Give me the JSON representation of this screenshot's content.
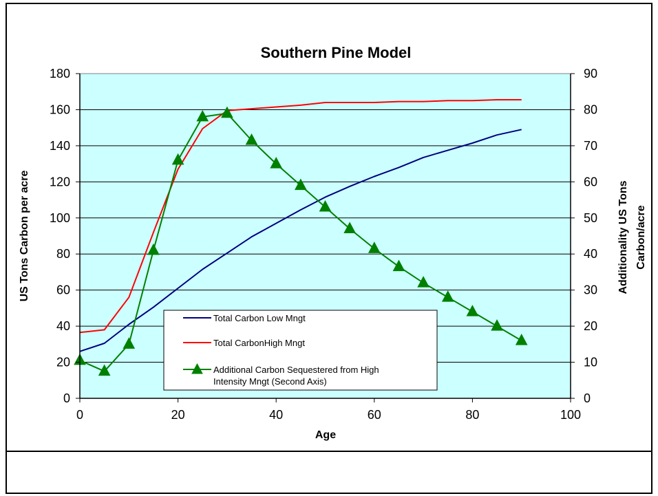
{
  "chart_data": {
    "type": "line",
    "title": "Southern Pine Model",
    "xlabel": "Age",
    "ylabel": "US Tons Carbon per acre",
    "ylabel_right": [
      "Additionality US Tons",
      "Carbon/acre"
    ],
    "xlim": [
      0,
      100
    ],
    "ylim": [
      0,
      180
    ],
    "ylim_right": [
      0,
      90
    ],
    "x_ticks": [
      0,
      20,
      40,
      60,
      80,
      100
    ],
    "y_ticks": [
      0,
      20,
      40,
      60,
      80,
      100,
      120,
      140,
      160,
      180
    ],
    "y_ticks_right": [
      0,
      10,
      20,
      30,
      40,
      50,
      60,
      70,
      80,
      90
    ],
    "grid": "horizontal",
    "legend_position": "lower-center",
    "plot_background": "#ccffff",
    "series": [
      {
        "name": "Total Carbon Low Mngt",
        "color": "#000080",
        "axis": "left",
        "marker": "none",
        "x": [
          0,
          5,
          10,
          15,
          20,
          25,
          30,
          35,
          40,
          45,
          50,
          55,
          60,
          65,
          70,
          75,
          80,
          85,
          90
        ],
        "values": [
          26,
          30.5,
          41,
          50.5,
          61,
          71.5,
          80.5,
          89.5,
          97,
          104.5,
          111.5,
          117.5,
          123,
          128,
          133.5,
          137.5,
          141.5,
          146,
          149
        ]
      },
      {
        "name": "Total CarbonHigh Mngt",
        "color": "#ff0000",
        "axis": "left",
        "marker": "none",
        "x": [
          0,
          5,
          10,
          15,
          20,
          25,
          30,
          35,
          40,
          45,
          50,
          55,
          60,
          65,
          70,
          75,
          80,
          85,
          90
        ],
        "values": [
          36.5,
          38,
          56,
          92,
          127,
          149.5,
          159.5,
          160.5,
          161.5,
          162.5,
          164,
          164,
          164,
          164.5,
          164.5,
          165,
          165,
          165.5,
          165.5
        ]
      },
      {
        "name": "Additional Carbon Sequestered from High Intensity Mngt (Second Axis)",
        "legend_lines": [
          "Additional Carbon Sequestered from High",
          "Intensity Mngt (Second Axis)"
        ],
        "color": "#008000",
        "axis": "right",
        "marker": "triangle",
        "x": [
          0,
          5,
          10,
          15,
          20,
          25,
          30,
          35,
          40,
          45,
          50,
          55,
          60,
          65,
          70,
          75,
          80,
          85,
          90
        ],
        "values": [
          10.5,
          7.5,
          15,
          41,
          66,
          78,
          79,
          71.5,
          65,
          59,
          53,
          47,
          41.5,
          36.5,
          32,
          28,
          24,
          20,
          16
        ]
      }
    ]
  }
}
